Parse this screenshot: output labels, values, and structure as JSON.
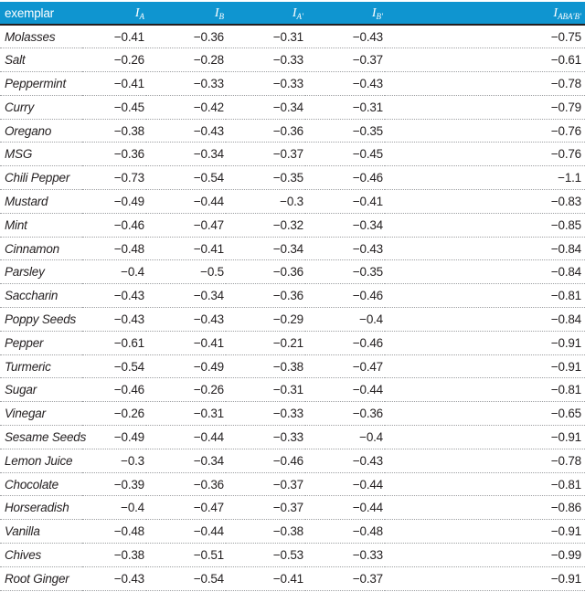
{
  "colors": {
    "header_bg": "#0f95d0",
    "header_text": "#ffffff",
    "body_text": "#231f20",
    "divider_dotted": "#9d9fa2",
    "header_rule": "#231f20"
  },
  "table": {
    "header": {
      "exemplar": "exemplar",
      "columns": [
        {
          "symbol": "I",
          "sub": "A"
        },
        {
          "symbol": "I",
          "sub": "B"
        },
        {
          "symbol": "I",
          "sub": "A′"
        },
        {
          "symbol": "I",
          "sub": "B′"
        },
        {
          "symbol": "I",
          "sub": "ABA′B′"
        }
      ]
    },
    "rows": [
      {
        "exemplar": "Molasses",
        "values": [
          "−0.41",
          "−0.36",
          "−0.31",
          "−0.43",
          "−0.75"
        ]
      },
      {
        "exemplar": "Salt",
        "values": [
          "−0.26",
          "−0.28",
          "−0.33",
          "−0.37",
          "−0.61"
        ]
      },
      {
        "exemplar": "Peppermint",
        "values": [
          "−0.41",
          "−0.33",
          "−0.33",
          "−0.43",
          "−0.78"
        ]
      },
      {
        "exemplar": "Curry",
        "values": [
          "−0.45",
          "−0.42",
          "−0.34",
          "−0.31",
          "−0.79"
        ]
      },
      {
        "exemplar": "Oregano",
        "values": [
          "−0.38",
          "−0.43",
          "−0.36",
          "−0.35",
          "−0.76"
        ]
      },
      {
        "exemplar": "MSG",
        "values": [
          "−0.36",
          "−0.34",
          "−0.37",
          "−0.45",
          "−0.76"
        ]
      },
      {
        "exemplar": "Chili Pepper",
        "values": [
          "−0.73",
          "−0.54",
          "−0.35",
          "−0.46",
          "−1.1"
        ]
      },
      {
        "exemplar": "Mustard",
        "values": [
          "−0.49",
          "−0.44",
          "−0.3",
          "−0.41",
          "−0.83"
        ]
      },
      {
        "exemplar": "Mint",
        "values": [
          "−0.46",
          "−0.47",
          "−0.32",
          "−0.34",
          "−0.85"
        ]
      },
      {
        "exemplar": "Cinnamon",
        "values": [
          "−0.48",
          "−0.41",
          "−0.34",
          "−0.43",
          "−0.84"
        ]
      },
      {
        "exemplar": "Parsley",
        "values": [
          "−0.4",
          "−0.5",
          "−0.36",
          "−0.35",
          "−0.84"
        ]
      },
      {
        "exemplar": "Saccharin",
        "values": [
          "−0.43",
          "−0.34",
          "−0.36",
          "−0.46",
          "−0.81"
        ]
      },
      {
        "exemplar": "Poppy Seeds",
        "values": [
          "−0.43",
          "−0.43",
          "−0.29",
          "−0.4",
          "−0.84"
        ]
      },
      {
        "exemplar": "Pepper",
        "values": [
          "−0.61",
          "−0.41",
          "−0.21",
          "−0.46",
          "−0.91"
        ]
      },
      {
        "exemplar": "Turmeric",
        "values": [
          "−0.54",
          "−0.49",
          "−0.38",
          "−0.47",
          "−0.91"
        ]
      },
      {
        "exemplar": "Sugar",
        "values": [
          "−0.46",
          "−0.26",
          "−0.31",
          "−0.44",
          "−0.81"
        ]
      },
      {
        "exemplar": "Vinegar",
        "values": [
          "−0.26",
          "−0.31",
          "−0.33",
          "−0.36",
          "−0.65"
        ]
      },
      {
        "exemplar": "Sesame Seeds",
        "values": [
          "−0.49",
          "−0.44",
          "−0.33",
          "−0.4",
          "−0.91"
        ]
      },
      {
        "exemplar": "Lemon Juice",
        "values": [
          "−0.3",
          "−0.34",
          "−0.46",
          "−0.43",
          "−0.78"
        ]
      },
      {
        "exemplar": "Chocolate",
        "values": [
          "−0.39",
          "−0.36",
          "−0.37",
          "−0.44",
          "−0.81"
        ]
      },
      {
        "exemplar": "Horseradish",
        "values": [
          "−0.4",
          "−0.47",
          "−0.37",
          "−0.44",
          "−0.86"
        ]
      },
      {
        "exemplar": "Vanilla",
        "values": [
          "−0.48",
          "−0.44",
          "−0.38",
          "−0.48",
          "−0.91"
        ]
      },
      {
        "exemplar": "Chives",
        "values": [
          "−0.38",
          "−0.51",
          "−0.53",
          "−0.33",
          "−0.99"
        ]
      },
      {
        "exemplar": "Root Ginger",
        "values": [
          "−0.43",
          "−0.54",
          "−0.41",
          "−0.37",
          "−0.91"
        ]
      }
    ]
  }
}
